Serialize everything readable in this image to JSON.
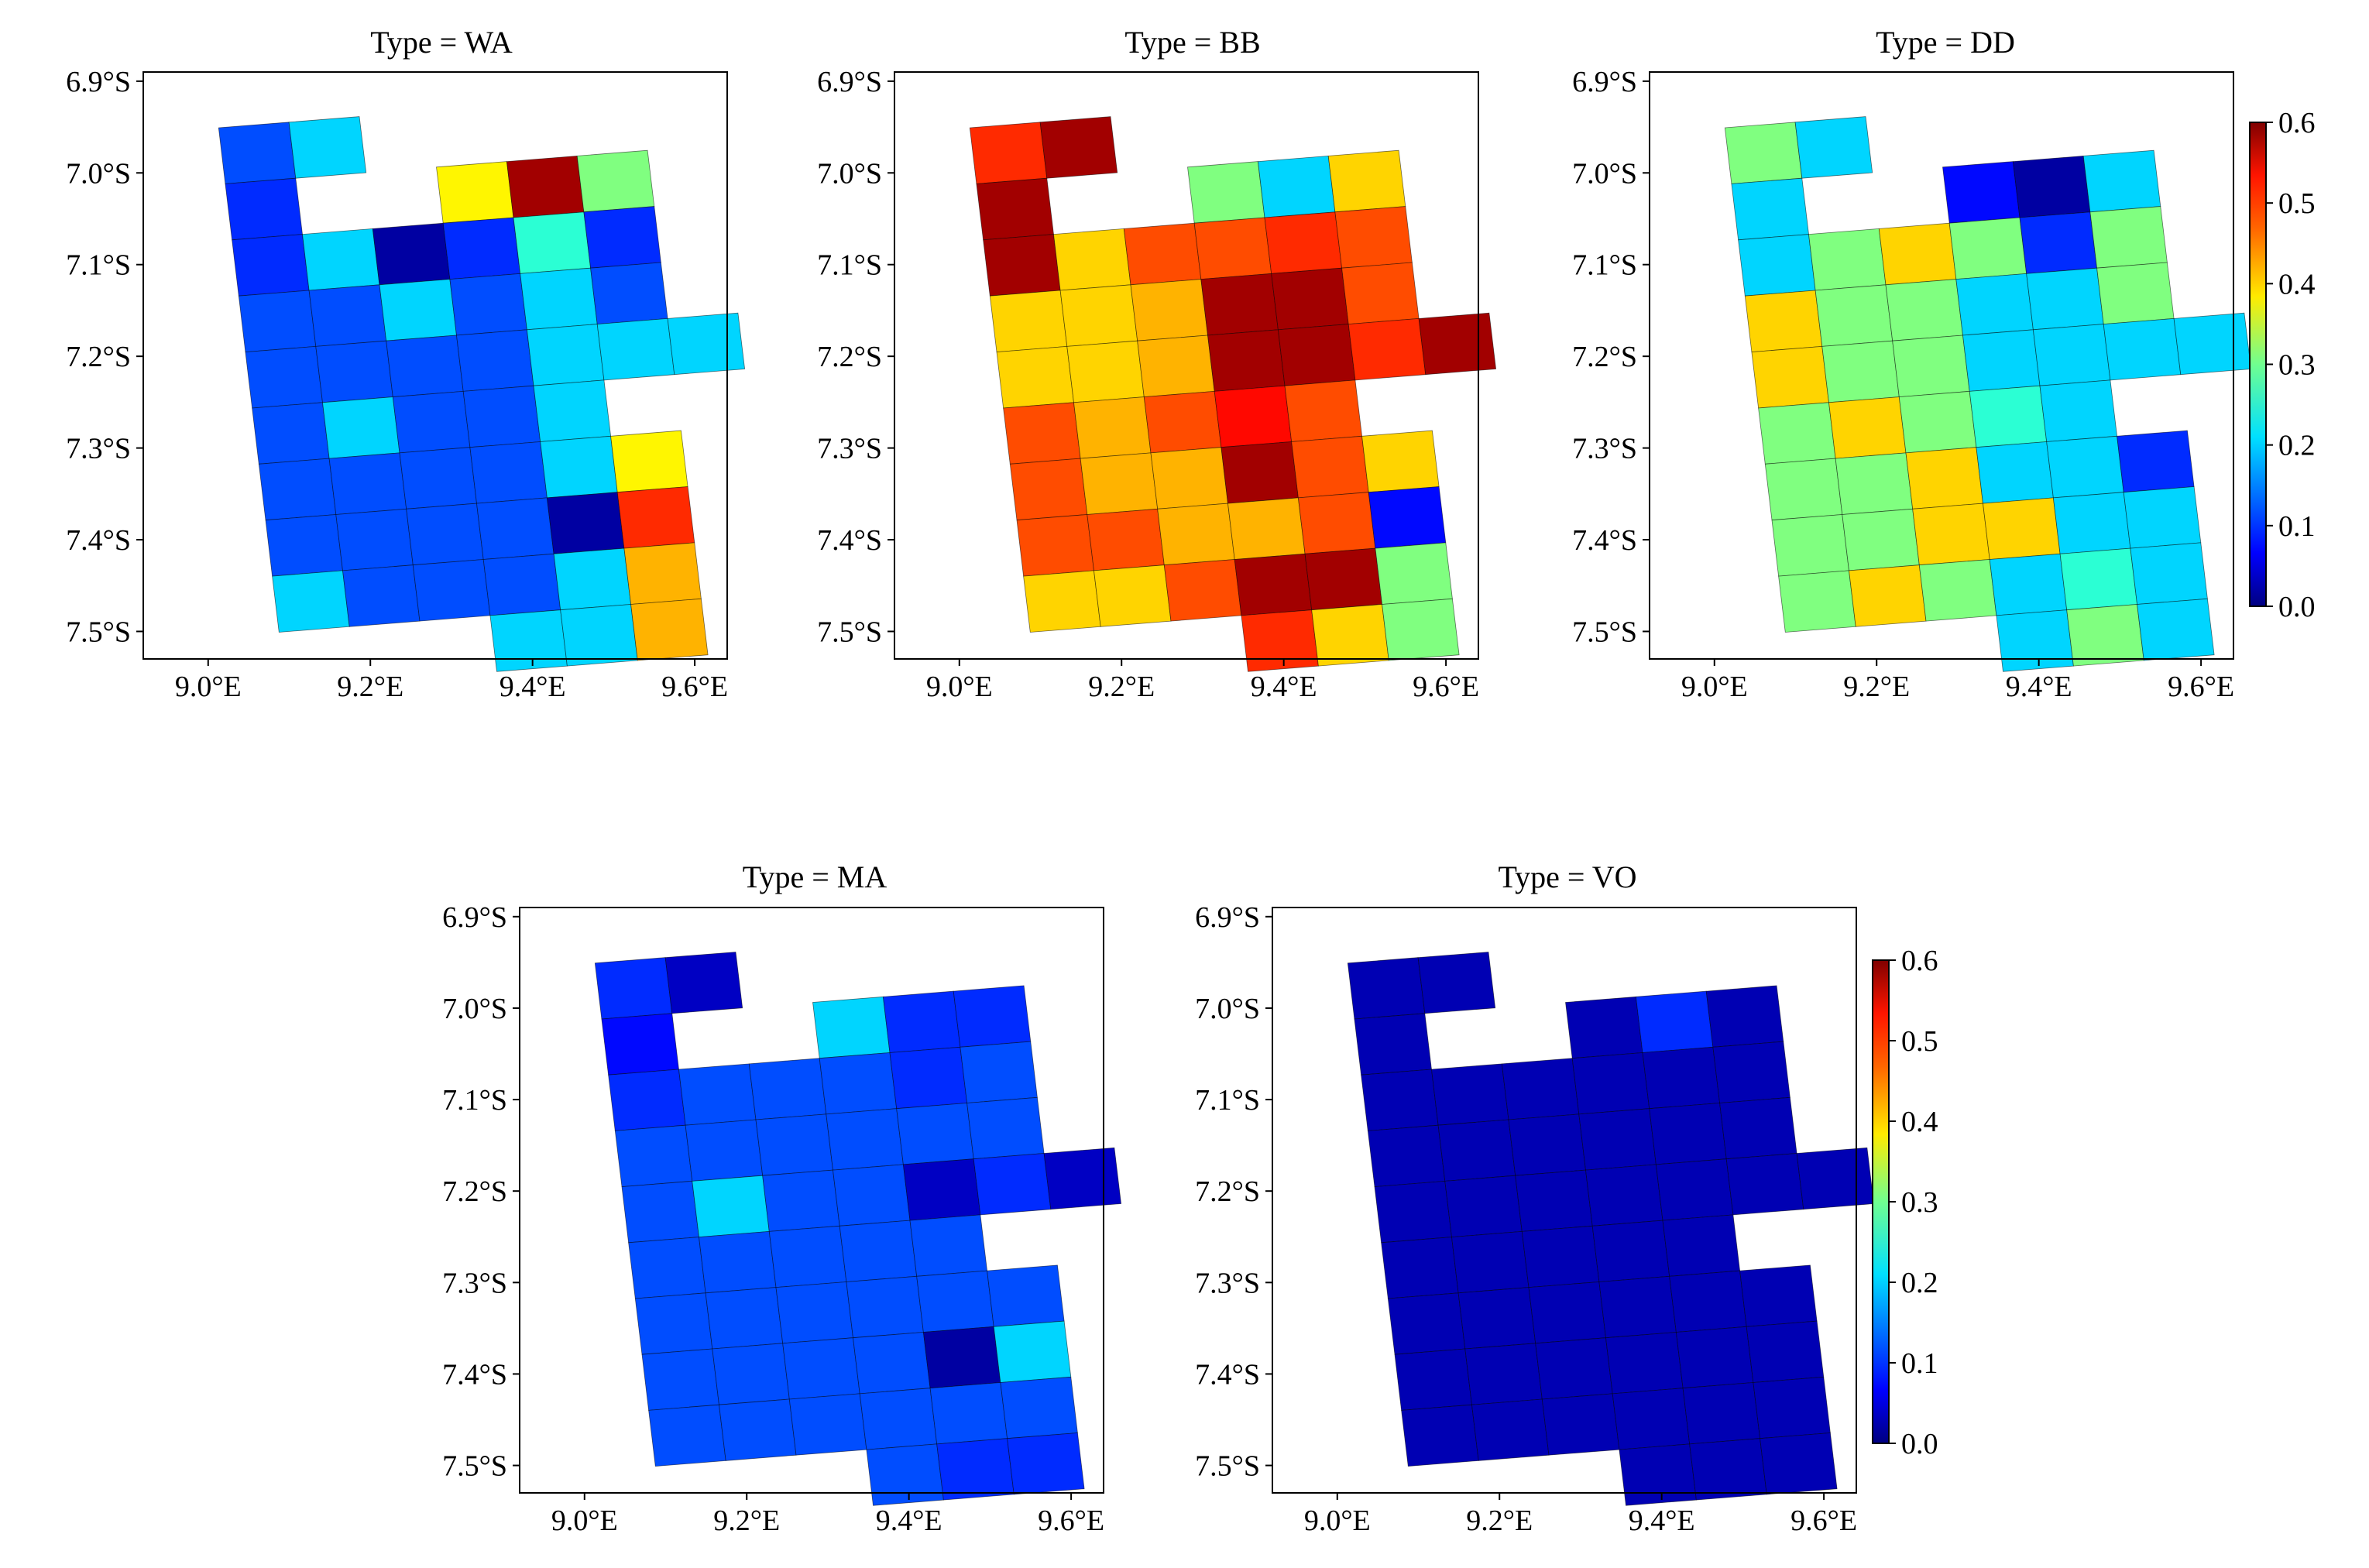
{
  "chart_data": {
    "type": "heatmap",
    "colormap": "jet",
    "value_range": [
      0.0,
      0.6
    ],
    "x_ticks": [
      "9.0°E",
      "9.2°E",
      "9.4°E",
      "9.6°E"
    ],
    "y_ticks": [
      "6.9°S",
      "7.0°S",
      "7.1°S",
      "7.2°S",
      "7.3°S",
      "7.4°S",
      "7.5°S"
    ],
    "xlim": [
      8.92,
      9.64
    ],
    "ylim": [
      -7.53,
      -6.89
    ],
    "colorbar_ticks": [
      "0.6",
      "0.5",
      "0.4",
      "0.3",
      "0.2",
      "0.1",
      "0.0"
    ],
    "row_start_cols": [
      0,
      0,
      0,
      0,
      0,
      0,
      0,
      0,
      0,
      3
    ],
    "panels": [
      {
        "title": "Type = WA",
        "rows": [
          [
            0.12,
            0.2,
            null,
            null,
            null,
            null,
            null
          ],
          [
            0.1,
            null,
            null,
            0.38,
            0.58,
            0.3,
            null
          ],
          [
            0.1,
            0.2,
            0.02,
            0.1,
            0.25,
            0.1,
            null
          ],
          [
            0.12,
            0.12,
            0.2,
            0.12,
            0.2,
            0.12,
            null
          ],
          [
            0.12,
            0.12,
            0.12,
            0.12,
            0.2,
            0.2,
            0.2
          ],
          [
            0.12,
            0.2,
            0.12,
            0.12,
            0.2,
            null,
            null
          ],
          [
            0.12,
            0.12,
            0.12,
            0.12,
            0.2,
            0.38,
            null
          ],
          [
            0.12,
            0.12,
            0.12,
            0.12,
            0.02,
            0.5,
            null
          ],
          [
            0.2,
            0.12,
            0.12,
            0.12,
            0.2,
            0.42,
            null
          ],
          [
            0.2,
            0.2,
            0.42
          ]
        ]
      },
      {
        "title": "Type = BB",
        "rows": [
          [
            0.5,
            0.58,
            null,
            null,
            null,
            null,
            null
          ],
          [
            0.58,
            null,
            null,
            0.3,
            0.2,
            0.4,
            null
          ],
          [
            0.58,
            0.4,
            0.48,
            0.48,
            0.5,
            0.48,
            null
          ],
          [
            0.4,
            0.4,
            0.42,
            0.58,
            0.58,
            0.48,
            null
          ],
          [
            0.4,
            0.4,
            0.42,
            0.58,
            0.58,
            0.5,
            0.58
          ],
          [
            0.48,
            0.42,
            0.48,
            0.52,
            0.48,
            null,
            null
          ],
          [
            0.48,
            0.42,
            0.42,
            0.58,
            0.48,
            0.4,
            null
          ],
          [
            0.48,
            0.48,
            0.42,
            0.42,
            0.48,
            0.08,
            null
          ],
          [
            0.4,
            0.4,
            0.48,
            0.58,
            0.58,
            0.3,
            null
          ],
          [
            0.5,
            0.4,
            0.3
          ]
        ]
      },
      {
        "title": "Type = DD",
        "rows": [
          [
            0.3,
            0.2,
            null,
            null,
            null,
            null,
            null
          ],
          [
            0.2,
            null,
            null,
            0.08,
            0.02,
            0.2,
            null
          ],
          [
            0.2,
            0.3,
            0.4,
            0.3,
            0.1,
            0.3,
            null
          ],
          [
            0.4,
            0.3,
            0.3,
            0.2,
            0.2,
            0.3,
            null
          ],
          [
            0.4,
            0.3,
            0.3,
            0.2,
            0.2,
            0.2,
            0.2
          ],
          [
            0.3,
            0.4,
            0.3,
            0.25,
            0.2,
            null,
            null
          ],
          [
            0.3,
            0.3,
            0.4,
            0.2,
            0.2,
            0.1,
            null
          ],
          [
            0.3,
            0.3,
            0.4,
            0.4,
            0.2,
            0.2,
            null
          ],
          [
            0.3,
            0.4,
            0.3,
            0.2,
            0.25,
            0.2,
            null
          ],
          [
            0.2,
            0.3,
            0.2
          ]
        ]
      },
      {
        "title": "Type = MA",
        "rows": [
          [
            0.1,
            0.04,
            null,
            null,
            null,
            null,
            null
          ],
          [
            0.08,
            null,
            null,
            0.2,
            0.1,
            0.1,
            null
          ],
          [
            0.1,
            0.12,
            0.12,
            0.12,
            0.1,
            0.12,
            null
          ],
          [
            0.12,
            0.12,
            0.12,
            0.12,
            0.12,
            0.12,
            null
          ],
          [
            0.12,
            0.2,
            0.12,
            0.12,
            0.04,
            0.1,
            0.04
          ],
          [
            0.12,
            0.12,
            0.12,
            0.12,
            0.12,
            null,
            null
          ],
          [
            0.12,
            0.12,
            0.12,
            0.12,
            0.12,
            0.12,
            null
          ],
          [
            0.12,
            0.12,
            0.12,
            0.12,
            0.02,
            0.2,
            null
          ],
          [
            0.12,
            0.12,
            0.12,
            0.12,
            0.12,
            0.12,
            null
          ],
          [
            0.12,
            0.1,
            0.1
          ]
        ]
      },
      {
        "title": "Type = VO",
        "rows": [
          [
            0.03,
            0.03,
            null,
            null,
            null,
            null,
            null
          ],
          [
            0.03,
            null,
            null,
            0.03,
            0.1,
            0.03,
            null
          ],
          [
            0.03,
            0.03,
            0.03,
            0.03,
            0.03,
            0.03,
            null
          ],
          [
            0.03,
            0.03,
            0.03,
            0.03,
            0.03,
            0.03,
            null
          ],
          [
            0.03,
            0.03,
            0.03,
            0.03,
            0.03,
            0.03,
            0.03
          ],
          [
            0.03,
            0.03,
            0.03,
            0.03,
            0.03,
            null,
            null
          ],
          [
            0.03,
            0.03,
            0.03,
            0.03,
            0.03,
            0.03,
            null
          ],
          [
            0.03,
            0.03,
            0.03,
            0.03,
            0.03,
            0.03,
            null
          ],
          [
            0.03,
            0.03,
            0.03,
            0.03,
            0.03,
            0.03,
            null
          ],
          [
            0.03,
            0.03,
            0.03
          ]
        ]
      }
    ]
  }
}
